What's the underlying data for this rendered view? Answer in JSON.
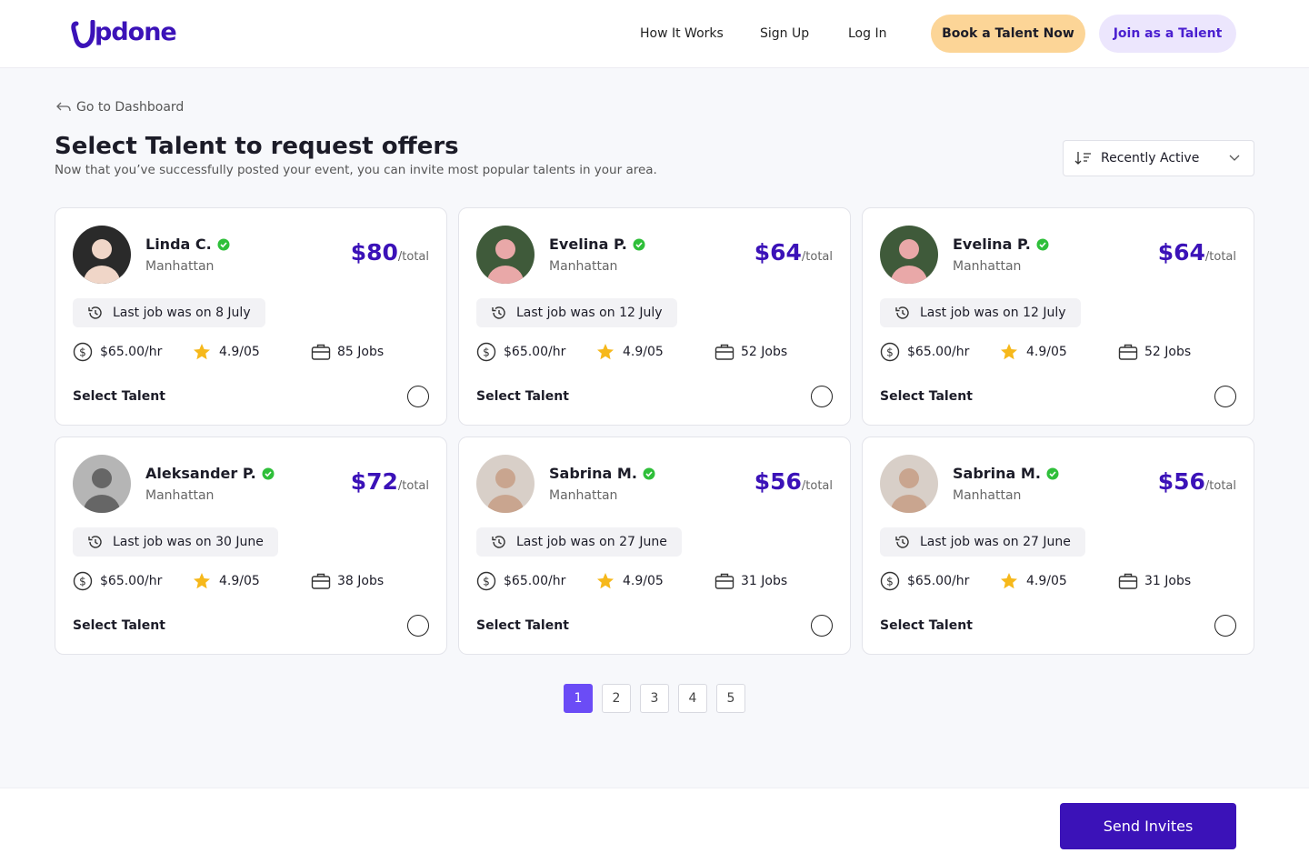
{
  "header": {
    "logo": "pdone",
    "nav": [
      "How It Works",
      "Sign Up",
      "Log In"
    ],
    "book_button": "Book a Talent Now",
    "join_button": "Join as a Talent"
  },
  "back_link": "Go to Dashboard",
  "title": "Select Talent to request offers",
  "subtitle": "Now that you’ve successfully posted your event, you can invite most popular talents in your area.",
  "sort": "Recently Active",
  "cards": [
    {
      "name": "Linda C.",
      "location": "Manhattan",
      "price": "$80",
      "price_unit": "/total",
      "last_job": "Last job was on 8 July",
      "rate": "$65.00/hr",
      "rating": "4.9/05",
      "jobs": "85 Jobs",
      "select": "Select Talent"
    },
    {
      "name": "Evelina P.",
      "location": "Manhattan",
      "price": "$64",
      "price_unit": "/total",
      "last_job": "Last job was on 12 July",
      "rate": "$65.00/hr",
      "rating": "4.9/05",
      "jobs": "52 Jobs",
      "select": "Select Talent"
    },
    {
      "name": "Evelina P.",
      "location": "Manhattan",
      "price": "$64",
      "price_unit": "/total",
      "last_job": "Last job was on 12 July",
      "rate": "$65.00/hr",
      "rating": "4.9/05",
      "jobs": "52 Jobs",
      "select": "Select Talent"
    },
    {
      "name": "Aleksander P.",
      "location": "Manhattan",
      "price": "$72",
      "price_unit": "/total",
      "last_job": "Last job was on 30 June",
      "rate": "$65.00/hr",
      "rating": "4.9/05",
      "jobs": "38 Jobs",
      "select": "Select Talent"
    },
    {
      "name": "Sabrina M.",
      "location": "Manhattan",
      "price": "$56",
      "price_unit": "/total",
      "last_job": "Last job was on 27 June",
      "rate": "$65.00/hr",
      "rating": "4.9/05",
      "jobs": "31 Jobs",
      "select": "Select Talent"
    },
    {
      "name": "Sabrina M.",
      "location": "Manhattan",
      "price": "$56",
      "price_unit": "/total",
      "last_job": "Last job was on 27 June",
      "rate": "$65.00/hr",
      "rating": "4.9/05",
      "jobs": "31 Jobs",
      "select": "Select Talent"
    }
  ],
  "pagination": {
    "pages": [
      "1",
      "2",
      "3",
      "4",
      "5"
    ],
    "active": 0
  },
  "footer": {
    "button": "Send Invites"
  }
}
